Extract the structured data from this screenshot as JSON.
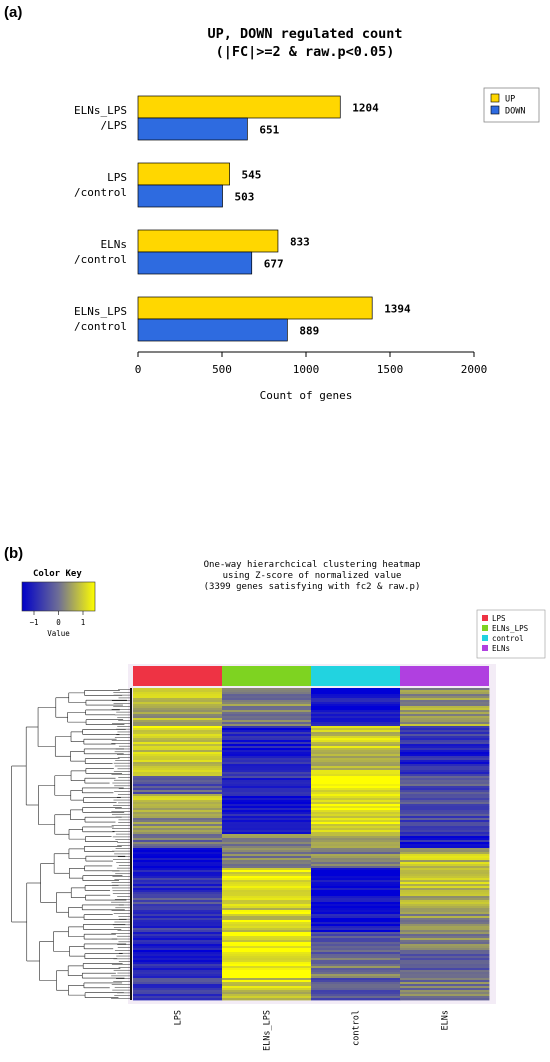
{
  "panel_a": {
    "label": "(a)",
    "chart_data": {
      "type": "bar",
      "orientation": "horizontal",
      "title_line1": "UP, DOWN regulated count",
      "title_line2": "(|FC|>=2 & raw.p<0.05)",
      "xlabel": "Count of genes",
      "xlim": [
        0,
        2000
      ],
      "xticks": [
        0,
        500,
        1000,
        1500,
        2000
      ],
      "categories": [
        {
          "line1": "ELNs_LPS",
          "line2": "/LPS"
        },
        {
          "line1": "LPS",
          "line2": "/control"
        },
        {
          "line1": "ELNs",
          "line2": "/control"
        },
        {
          "line1": "ELNs_LPS",
          "line2": "/control"
        }
      ],
      "series": [
        {
          "name": "UP",
          "color": "#FFD700",
          "values": [
            1204,
            545,
            833,
            1394
          ]
        },
        {
          "name": "DOWN",
          "color": "#2E6BE0",
          "values": [
            651,
            503,
            677,
            889
          ]
        }
      ],
      "legend_position": "top-right"
    }
  },
  "panel_b": {
    "label": "(b)",
    "chart_data": {
      "type": "heatmap",
      "title_line1": "One-way hierarchcical clustering heatmap",
      "title_line2": "using Z-score of normalized value",
      "title_line3": "(3399 genes satisfying with fc2 & raw.p)",
      "color_key": {
        "title": "Color Key",
        "xlabel": "Value",
        "ticks": [
          -1,
          0,
          1
        ],
        "tick_labels": [
          "−1",
          "0",
          "1"
        ],
        "colors": [
          "#0000C8",
          "#6E6E96",
          "#FFFF00"
        ]
      },
      "groups": [
        {
          "name": "LPS",
          "color": "#EE3344"
        },
        {
          "name": "ELNs_LPS",
          "color": "#7ED321"
        },
        {
          "name": "control",
          "color": "#22D3E0"
        },
        {
          "name": "ELNs",
          "color": "#B040E0"
        }
      ],
      "n_genes": 3399,
      "blocks": [
        {
          "frac": 0.06,
          "z": [
            1.0,
            0.2,
            -1.3,
            0.3
          ]
        },
        {
          "frac": 0.06,
          "z": [
            0.6,
            0.1,
            -1.2,
            0.5
          ]
        },
        {
          "frac": 0.08,
          "z": [
            1.1,
            -1.1,
            1.0,
            -0.8
          ]
        },
        {
          "frac": 0.08,
          "z": [
            1.0,
            -1.0,
            0.9,
            -1.0
          ]
        },
        {
          "frac": 0.06,
          "z": [
            -0.3,
            -0.9,
            1.4,
            -0.4
          ]
        },
        {
          "frac": 0.06,
          "z": [
            0.8,
            -1.2,
            1.3,
            -0.3
          ]
        },
        {
          "frac": 0.07,
          "z": [
            0.3,
            -1.2,
            1.2,
            -0.6
          ]
        },
        {
          "frac": 0.04,
          "z": [
            0.0,
            0.2,
            0.6,
            -1.1
          ]
        },
        {
          "frac": 0.07,
          "z": [
            -1.4,
            0.3,
            0.2,
            0.8
          ]
        },
        {
          "frac": 0.08,
          "z": [
            -0.9,
            1.2,
            -1.3,
            0.9
          ]
        },
        {
          "frac": 0.06,
          "z": [
            -0.5,
            1.0,
            -1.4,
            0.7
          ]
        },
        {
          "frac": 0.06,
          "z": [
            -0.8,
            1.1,
            -1.2,
            0.4
          ]
        },
        {
          "frac": 0.07,
          "z": [
            -1.2,
            1.3,
            -0.4,
            0.2
          ]
        },
        {
          "frac": 0.08,
          "z": [
            -1.0,
            1.4,
            0.1,
            -0.2
          ]
        },
        {
          "frac": 0.07,
          "z": [
            -0.7,
            1.0,
            -0.3,
            0.1
          ]
        }
      ]
    }
  }
}
